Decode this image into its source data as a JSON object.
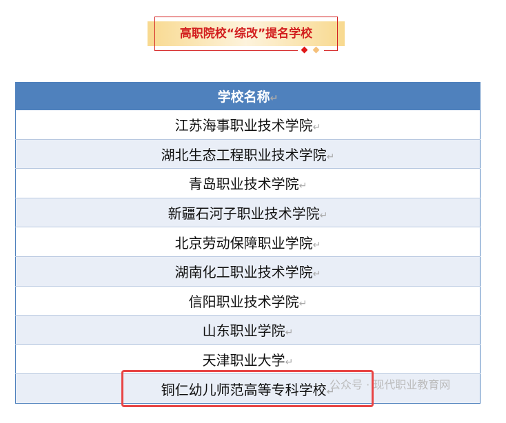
{
  "banner": {
    "title": "高职院校“综改”提名学校"
  },
  "table": {
    "header": "学校名称",
    "rows": [
      "江苏海事职业技术学院",
      "湖北生态工程职业技术学院",
      "青岛职业技术学院",
      "新疆石河子职业技术学院",
      "北京劳动保障职业学院",
      "湖南化工职业技术学院",
      "信阳职业技术学院",
      "山东职业学院",
      "天津职业大学",
      "铜仁幼儿师范高等专科学校"
    ]
  },
  "watermark": "公众号 · 现代职业教育网",
  "colors": {
    "header": "#4f81bd",
    "accent": "#d21e1e",
    "highlight": "#e84545"
  }
}
